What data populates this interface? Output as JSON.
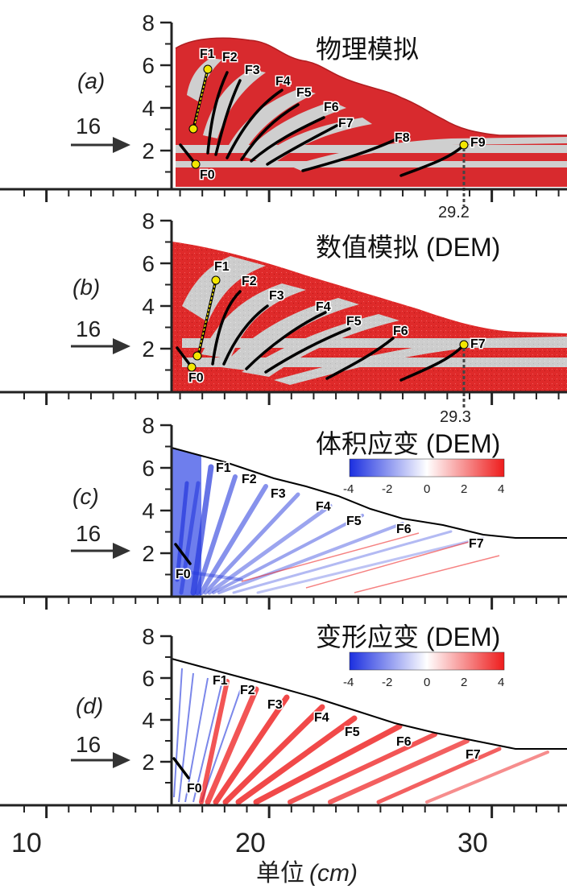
{
  "x_axis": {
    "ticks": [
      "10",
      "20",
      "30"
    ],
    "title": "单位",
    "unit": "(cm)"
  },
  "y_ticks": [
    "8",
    "6",
    "4",
    "2"
  ],
  "colors": {
    "sand_red": "#d82a2e",
    "sand_gray": "#cfcfcf",
    "fault": "#000000",
    "fault_dot": "#f3e600",
    "strain_neg": "#1b2fe0",
    "strain_pos": "#ee1c1c"
  },
  "colorbar": {
    "ticks": [
      "-4",
      "-2",
      "0",
      "2",
      "4"
    ]
  },
  "panels": [
    {
      "label": "(a)",
      "title": "物理模拟",
      "arrow_label": "16",
      "faults": [
        "F0",
        "F1",
        "F2",
        "F3",
        "F4",
        "F5",
        "F6",
        "F7",
        "F8",
        "F9"
      ],
      "marker": "29.2"
    },
    {
      "label": "(b)",
      "title": "数值模拟 (DEM)",
      "arrow_label": "16",
      "faults": [
        "F0",
        "F1",
        "F2",
        "F3",
        "F4",
        "F5",
        "F6",
        "F7"
      ],
      "marker": "29.3"
    },
    {
      "label": "(c)",
      "title": "体积应变 (DEM)",
      "arrow_label": "16",
      "faults": [
        "F0",
        "F1",
        "F2",
        "F3",
        "F4",
        "F5",
        "F6",
        "F7"
      ]
    },
    {
      "label": "(d)",
      "title": "变形应变 (DEM)",
      "arrow_label": "16",
      "faults": [
        "F0",
        "F1",
        "F2",
        "F3",
        "F4",
        "F5",
        "F6",
        "F7"
      ]
    }
  ]
}
